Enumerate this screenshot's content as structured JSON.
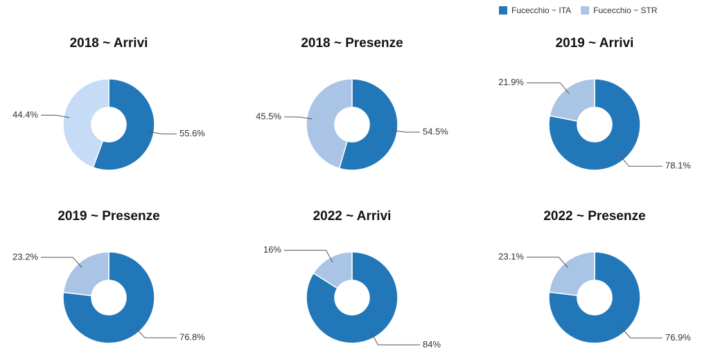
{
  "legend": {
    "names": [
      "Fucecchio ~ ITA",
      "Fucecchio ~ STR"
    ],
    "colors": [
      "#2277b8",
      "#a9c4e4"
    ],
    "position": "top-right"
  },
  "chart_data": [
    {
      "type": "donut",
      "title": "2018 ~ Arrivi",
      "values": [
        55.6,
        44.4
      ],
      "value_labels": [
        "55.6%",
        "44.4%"
      ],
      "colors": [
        "#2277b8",
        "#c6dbf5"
      ]
    },
    {
      "type": "donut",
      "title": "2018 ~ Presenze",
      "values": [
        54.5,
        45.5
      ],
      "value_labels": [
        "54.5%",
        "45.5%"
      ],
      "colors": [
        "#2277b8",
        "#a9c4e4"
      ]
    },
    {
      "type": "donut",
      "title": "2019 ~ Arrivi",
      "values": [
        78.1,
        21.9
      ],
      "value_labels": [
        "78.1%",
        "21.9%"
      ],
      "colors": [
        "#2277b8",
        "#a9c4e4"
      ]
    },
    {
      "type": "donut",
      "title": "2019 ~ Presenze",
      "values": [
        76.8,
        23.2
      ],
      "value_labels": [
        "76.8%",
        "23.2%"
      ],
      "colors": [
        "#2277b8",
        "#a9c4e4"
      ]
    },
    {
      "type": "donut",
      "title": "2022 ~ Arrivi",
      "values": [
        84,
        16
      ],
      "value_labels": [
        "84%",
        "16%"
      ],
      "colors": [
        "#2277b8",
        "#a9c4e4"
      ]
    },
    {
      "type": "donut",
      "title": "2022 ~ Presenze",
      "values": [
        76.9,
        23.1
      ],
      "value_labels": [
        "76.9%",
        "23.1%"
      ],
      "colors": [
        "#2277b8",
        "#a9c4e4"
      ]
    }
  ]
}
